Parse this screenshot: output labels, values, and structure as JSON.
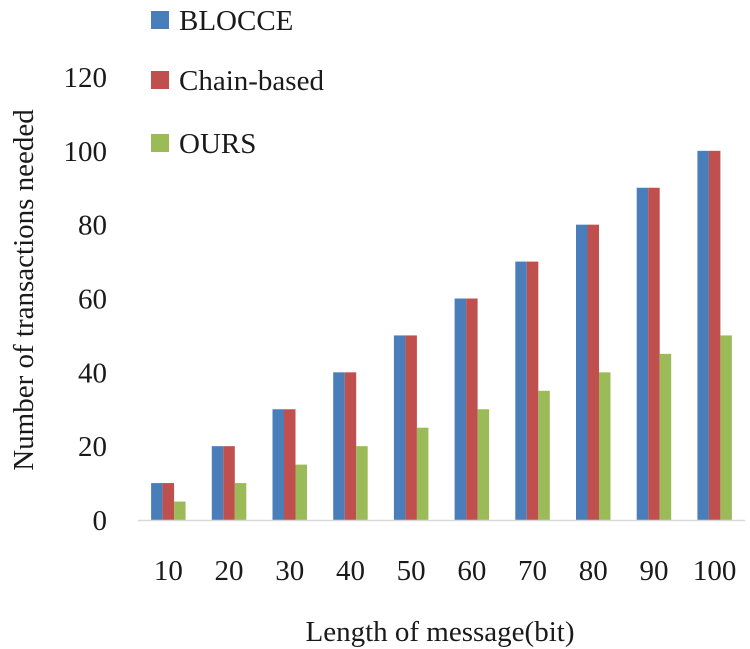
{
  "chart_data": {
    "type": "bar",
    "categories": [
      "10",
      "20",
      "30",
      "40",
      "50",
      "60",
      "70",
      "80",
      "90",
      "100"
    ],
    "series": [
      {
        "name": "BLOCCE",
        "color": "#4a7ebb",
        "values": [
          10,
          20,
          30,
          40,
          50,
          60,
          70,
          80,
          90,
          100
        ]
      },
      {
        "name": "Chain-based",
        "color": "#c0504d",
        "values": [
          10,
          20,
          30,
          40,
          50,
          60,
          70,
          80,
          90,
          100
        ]
      },
      {
        "name": "OURS",
        "color": "#9bbb59",
        "values": [
          5,
          10,
          15,
          20,
          25,
          30,
          35,
          40,
          45,
          50
        ]
      }
    ],
    "xlabel": "Length of message(bit)",
    "ylabel": "Number of transactions needed",
    "ylim": [
      0,
      120
    ],
    "yticks": [
      0,
      20,
      40,
      60,
      80,
      100,
      120
    ],
    "grid": false,
    "legend_position": "top-left"
  }
}
